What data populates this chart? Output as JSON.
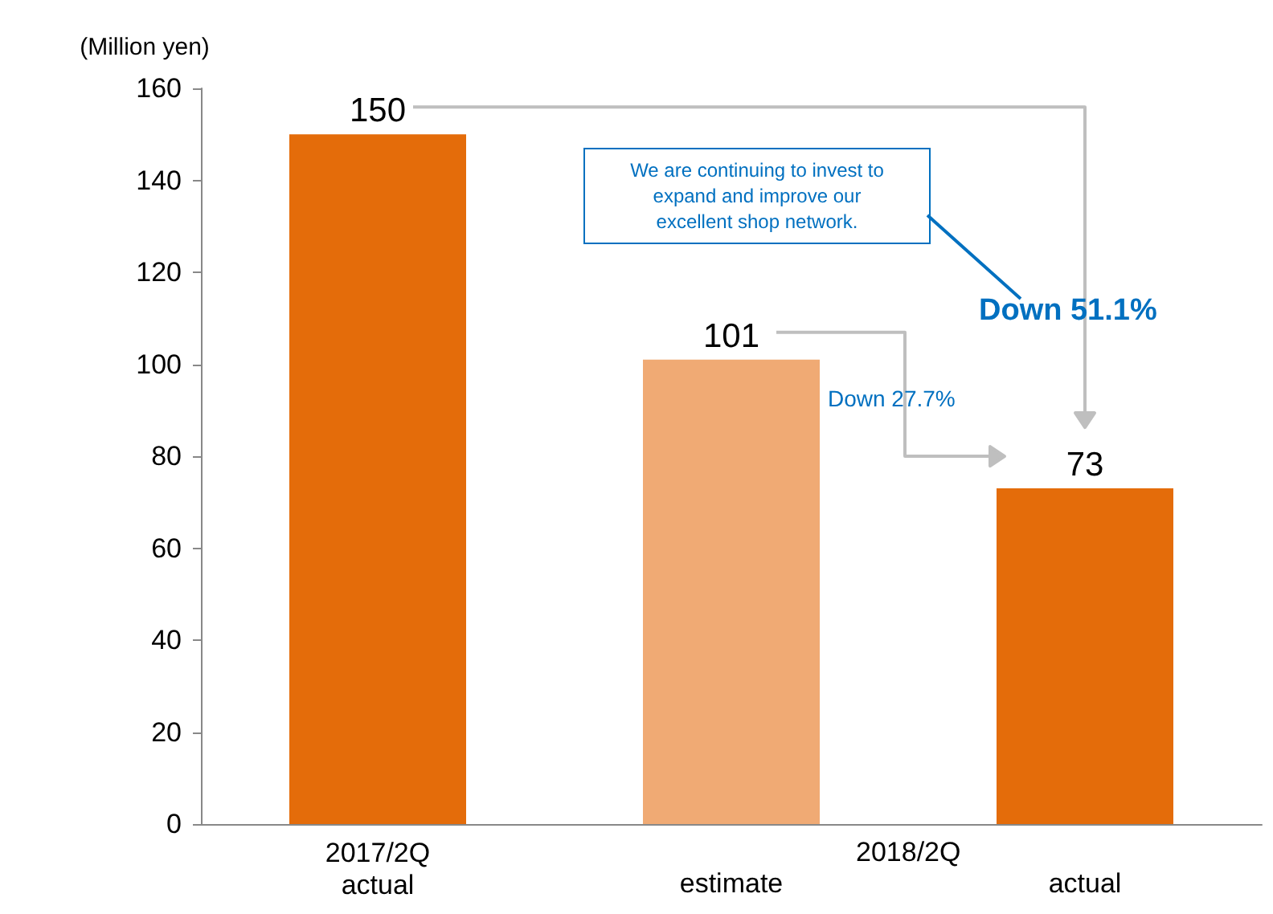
{
  "chart_data": {
    "type": "bar",
    "ylabel": "(Million yen)",
    "categories": [
      "2017/2Q\nactual",
      "estimate",
      "actual"
    ],
    "values": [
      150,
      101,
      73
    ],
    "colors": [
      "#e46c0a",
      "#f0aa74",
      "#e46c0a"
    ],
    "data_labels": true,
    "ylim": [
      0,
      160
    ],
    "yticks": [
      0,
      20,
      40,
      60,
      80,
      100,
      120,
      140,
      160
    ],
    "annotations": [
      "2018/2Q",
      "We are continuing to invest to expand and improve our excellent shop network.",
      "Down 51.1%",
      "Down 27.7%"
    ]
  }
}
